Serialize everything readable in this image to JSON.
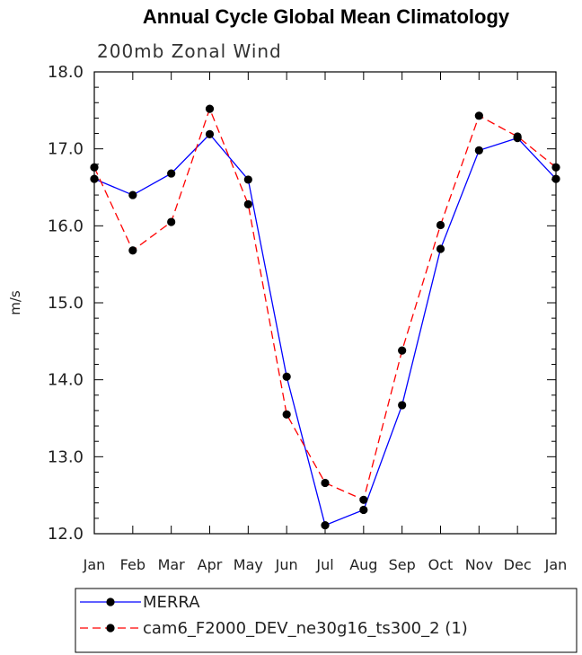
{
  "chart_data": {
    "type": "line",
    "title": "Annual Cycle Global Mean Climatology",
    "subtitle": "200mb Zonal Wind",
    "ylabel": "m/s",
    "xlabel": "",
    "categories": [
      "Jan",
      "Feb",
      "Mar",
      "Apr",
      "May",
      "Jun",
      "Jul",
      "Aug",
      "Sep",
      "Oct",
      "Nov",
      "Dec",
      "Jan"
    ],
    "ylim": [
      12.0,
      18.0
    ],
    "yticks": [
      "12.0",
      "13.0",
      "14.0",
      "15.0",
      "16.0",
      "17.0",
      "18.0"
    ],
    "grid": false,
    "legend_position": "bottom",
    "series": [
      {
        "name": "MERRA",
        "color": "#0000ff",
        "dash": "solid",
        "values": [
          16.61,
          16.4,
          16.68,
          17.19,
          16.6,
          14.04,
          12.11,
          12.31,
          13.67,
          15.7,
          16.98,
          17.14,
          16.61
        ]
      },
      {
        "name": "cam6_F2000_DEV_ne30g16_ts300_2 (1)",
        "color": "#ff0000",
        "dash": "dashed",
        "values": [
          16.76,
          15.68,
          16.05,
          17.52,
          16.28,
          13.55,
          12.66,
          12.44,
          14.38,
          16.01,
          17.43,
          17.16,
          16.76
        ]
      }
    ]
  }
}
